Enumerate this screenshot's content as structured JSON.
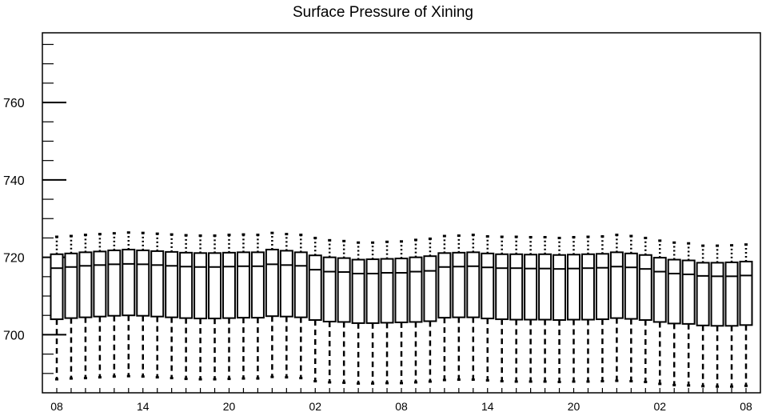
{
  "chart_data": {
    "type": "boxplot",
    "title": "Surface Pressure of Xining",
    "xlabel": "",
    "ylabel": "",
    "ylim": [
      685,
      778
    ],
    "y_ticks": [
      700,
      720,
      740,
      760
    ],
    "x_tick_labels": [
      "08",
      "14",
      "20",
      "02",
      "08",
      "14",
      "20",
      "02",
      "08"
    ],
    "x_tick_positions": [
      0,
      6,
      12,
      18,
      24,
      30,
      36,
      42,
      48
    ],
    "grid": false,
    "boxes": [
      {
        "x": 0,
        "whisker_low": 688.5,
        "q1": 704.0,
        "median": 717.2,
        "q3": 720.8,
        "whisker_high": 725.3
      },
      {
        "x": 1,
        "whisker_low": 688.7,
        "q1": 704.3,
        "median": 717.5,
        "q3": 721.0,
        "whisker_high": 725.5
      },
      {
        "x": 2,
        "whisker_low": 688.8,
        "q1": 704.5,
        "median": 717.8,
        "q3": 721.3,
        "whisker_high": 725.8
      },
      {
        "x": 3,
        "whisker_low": 689.0,
        "q1": 704.7,
        "median": 718.0,
        "q3": 721.5,
        "whisker_high": 726.0
      },
      {
        "x": 4,
        "whisker_low": 689.2,
        "q1": 704.9,
        "median": 718.2,
        "q3": 721.8,
        "whisker_high": 726.2
      },
      {
        "x": 5,
        "whisker_low": 689.3,
        "q1": 705.0,
        "median": 718.3,
        "q3": 722.0,
        "whisker_high": 726.4
      },
      {
        "x": 6,
        "whisker_low": 689.2,
        "q1": 704.9,
        "median": 718.2,
        "q3": 721.8,
        "whisker_high": 726.3
      },
      {
        "x": 7,
        "whisker_low": 689.0,
        "q1": 704.7,
        "median": 718.0,
        "q3": 721.6,
        "whisker_high": 726.1
      },
      {
        "x": 8,
        "whisker_low": 688.8,
        "q1": 704.5,
        "median": 717.8,
        "q3": 721.4,
        "whisker_high": 725.9
      },
      {
        "x": 9,
        "whisker_low": 688.6,
        "q1": 704.3,
        "median": 717.6,
        "q3": 721.2,
        "whisker_high": 725.7
      },
      {
        "x": 10,
        "whisker_low": 688.5,
        "q1": 704.2,
        "median": 717.5,
        "q3": 721.1,
        "whisker_high": 725.6
      },
      {
        "x": 11,
        "whisker_low": 688.5,
        "q1": 704.2,
        "median": 717.5,
        "q3": 721.1,
        "whisker_high": 725.6
      },
      {
        "x": 12,
        "whisker_low": 688.6,
        "q1": 704.3,
        "median": 717.6,
        "q3": 721.2,
        "whisker_high": 725.8
      },
      {
        "x": 13,
        "whisker_low": 688.7,
        "q1": 704.4,
        "median": 717.7,
        "q3": 721.3,
        "whisker_high": 725.9
      },
      {
        "x": 14,
        "whisker_low": 688.7,
        "q1": 704.4,
        "median": 717.7,
        "q3": 721.3,
        "whisker_high": 725.8
      },
      {
        "x": 15,
        "whisker_low": 689.1,
        "q1": 704.8,
        "median": 718.2,
        "q3": 722.0,
        "whisker_high": 726.3
      },
      {
        "x": 16,
        "whisker_low": 689.0,
        "q1": 704.7,
        "median": 718.0,
        "q3": 721.7,
        "whisker_high": 726.0
      },
      {
        "x": 17,
        "whisker_low": 688.8,
        "q1": 704.5,
        "median": 717.8,
        "q3": 721.3,
        "whisker_high": 725.8
      },
      {
        "x": 18,
        "whisker_low": 688.0,
        "q1": 703.8,
        "median": 716.8,
        "q3": 720.5,
        "whisker_high": 725.0
      },
      {
        "x": 19,
        "whisker_low": 687.7,
        "q1": 703.4,
        "median": 716.3,
        "q3": 720.0,
        "whisker_high": 724.4
      },
      {
        "x": 20,
        "whisker_low": 687.6,
        "q1": 703.3,
        "median": 716.2,
        "q3": 719.8,
        "whisker_high": 724.2
      },
      {
        "x": 21,
        "whisker_low": 687.4,
        "q1": 703.0,
        "median": 715.8,
        "q3": 719.4,
        "whisker_high": 723.8
      },
      {
        "x": 22,
        "whisker_low": 687.4,
        "q1": 703.0,
        "median": 715.8,
        "q3": 719.5,
        "whisker_high": 723.8
      },
      {
        "x": 23,
        "whisker_low": 687.5,
        "q1": 703.1,
        "median": 716.0,
        "q3": 719.6,
        "whisker_high": 724.0
      },
      {
        "x": 24,
        "whisker_low": 687.5,
        "q1": 703.2,
        "median": 716.0,
        "q3": 719.7,
        "whisker_high": 724.1
      },
      {
        "x": 25,
        "whisker_low": 687.7,
        "q1": 703.3,
        "median": 716.3,
        "q3": 720.0,
        "whisker_high": 724.5
      },
      {
        "x": 26,
        "whisker_low": 687.9,
        "q1": 703.5,
        "median": 716.5,
        "q3": 720.3,
        "whisker_high": 724.8
      },
      {
        "x": 27,
        "whisker_low": 688.3,
        "q1": 704.4,
        "median": 717.5,
        "q3": 721.1,
        "whisker_high": 725.5
      },
      {
        "x": 28,
        "whisker_low": 688.4,
        "q1": 704.5,
        "median": 717.6,
        "q3": 721.2,
        "whisker_high": 725.6
      },
      {
        "x": 29,
        "whisker_low": 688.4,
        "q1": 704.5,
        "median": 717.7,
        "q3": 721.3,
        "whisker_high": 725.8
      },
      {
        "x": 30,
        "whisker_low": 688.2,
        "q1": 704.2,
        "median": 717.4,
        "q3": 721.0,
        "whisker_high": 725.4
      },
      {
        "x": 31,
        "whisker_low": 688.0,
        "q1": 704.0,
        "median": 717.2,
        "q3": 720.8,
        "whisker_high": 725.3
      },
      {
        "x": 32,
        "whisker_low": 687.9,
        "q1": 703.9,
        "median": 717.2,
        "q3": 720.8,
        "whisker_high": 725.3
      },
      {
        "x": 33,
        "whisker_low": 687.9,
        "q1": 703.9,
        "median": 717.1,
        "q3": 720.7,
        "whisker_high": 725.2
      },
      {
        "x": 34,
        "whisker_low": 687.9,
        "q1": 703.9,
        "median": 717.1,
        "q3": 720.8,
        "whisker_high": 725.2
      },
      {
        "x": 35,
        "whisker_low": 687.8,
        "q1": 703.8,
        "median": 717.0,
        "q3": 720.6,
        "whisker_high": 725.0
      },
      {
        "x": 36,
        "whisker_low": 687.9,
        "q1": 703.9,
        "median": 717.1,
        "q3": 720.7,
        "whisker_high": 725.2
      },
      {
        "x": 37,
        "whisker_low": 687.9,
        "q1": 703.9,
        "median": 717.2,
        "q3": 720.8,
        "whisker_high": 725.3
      },
      {
        "x": 38,
        "whisker_low": 688.0,
        "q1": 704.0,
        "median": 717.3,
        "q3": 720.9,
        "whisker_high": 725.4
      },
      {
        "x": 39,
        "whisker_low": 688.1,
        "q1": 704.3,
        "median": 717.6,
        "q3": 721.3,
        "whisker_high": 725.8
      },
      {
        "x": 40,
        "whisker_low": 688.0,
        "q1": 704.1,
        "median": 717.4,
        "q3": 721.0,
        "whisker_high": 725.5
      },
      {
        "x": 41,
        "whisker_low": 687.8,
        "q1": 703.8,
        "median": 717.0,
        "q3": 720.6,
        "whisker_high": 725.0
      },
      {
        "x": 42,
        "whisker_low": 687.3,
        "q1": 703.3,
        "median": 716.3,
        "q3": 719.9,
        "whisker_high": 724.3
      },
      {
        "x": 43,
        "whisker_low": 687.0,
        "q1": 702.9,
        "median": 715.8,
        "q3": 719.4,
        "whisker_high": 723.8
      },
      {
        "x": 44,
        "whisker_low": 686.9,
        "q1": 702.8,
        "median": 715.6,
        "q3": 719.2,
        "whisker_high": 723.6
      },
      {
        "x": 45,
        "whisker_low": 686.7,
        "q1": 702.4,
        "median": 715.2,
        "q3": 718.6,
        "whisker_high": 723.0
      },
      {
        "x": 46,
        "whisker_low": 686.6,
        "q1": 702.3,
        "median": 715.1,
        "q3": 718.6,
        "whisker_high": 723.0
      },
      {
        "x": 47,
        "whisker_low": 686.6,
        "q1": 702.3,
        "median": 715.1,
        "q3": 718.7,
        "whisker_high": 723.1
      },
      {
        "x": 48,
        "whisker_low": 686.8,
        "q1": 702.5,
        "median": 715.3,
        "q3": 718.9,
        "whisker_high": 723.3
      }
    ]
  }
}
